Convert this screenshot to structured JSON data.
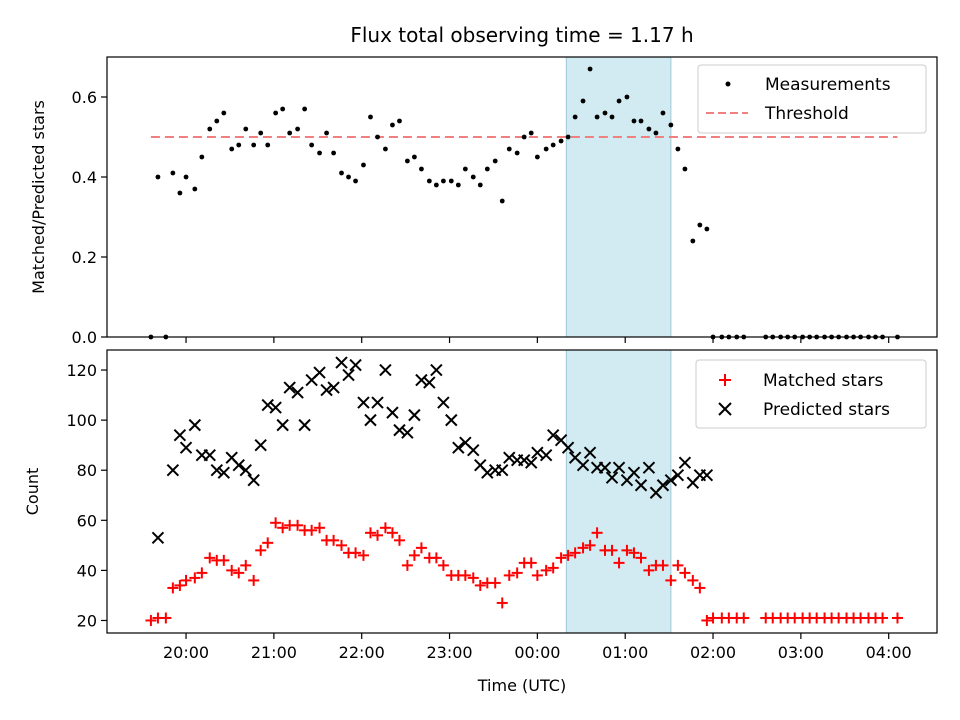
{
  "title": "Flux total observing time = 1.17 h",
  "colors": {
    "measurement": "#000000",
    "threshold": "#f08080",
    "matched": "#ff0000",
    "predicted": "#000000",
    "shade": "#add8e6"
  },
  "chart_data": [
    {
      "type": "scatter",
      "ylabel": "Matched/Predicted stars",
      "xlim_hours": [
        19.1,
        28.55
      ],
      "ylim": [
        0,
        0.7
      ],
      "yticks": [
        "0.0",
        "0.2",
        "0.4",
        "0.6"
      ],
      "legend_placement": "top-right",
      "shaded_interval_hours": [
        24.33,
        25.52
      ],
      "series": [
        {
          "name": "Measurements",
          "x": [
            19.6,
            19.68,
            19.77,
            19.85,
            19.93,
            20.0,
            20.1,
            20.18,
            20.27,
            20.35,
            20.43,
            20.52,
            20.6,
            20.68,
            20.77,
            20.85,
            20.93,
            21.02,
            21.1,
            21.18,
            21.27,
            21.35,
            21.43,
            21.52,
            21.6,
            21.68,
            21.77,
            21.85,
            21.93,
            22.02,
            22.1,
            22.18,
            22.27,
            22.35,
            22.43,
            22.52,
            22.6,
            22.68,
            22.77,
            22.85,
            22.93,
            23.02,
            23.1,
            23.18,
            23.27,
            23.35,
            23.43,
            23.52,
            23.6,
            23.68,
            23.77,
            23.85,
            23.93,
            24.0,
            24.1,
            24.18,
            24.27,
            24.35,
            24.43,
            24.52,
            24.6,
            24.68,
            24.77,
            24.85,
            24.93,
            25.02,
            25.1,
            25.18,
            25.27,
            25.35,
            25.43,
            25.52,
            25.6,
            25.68,
            25.77,
            25.85,
            25.93,
            26.0,
            26.1,
            26.18,
            26.27,
            26.35,
            26.6,
            26.68,
            26.77,
            26.85,
            26.93,
            27.02,
            27.1,
            27.18,
            27.27,
            27.35,
            27.43,
            27.52,
            27.6,
            27.68,
            27.77,
            27.85,
            27.93,
            28.1
          ],
          "y": [
            0.0,
            0.4,
            0.0,
            0.41,
            0.36,
            0.4,
            0.37,
            0.45,
            0.52,
            0.54,
            0.56,
            0.47,
            0.48,
            0.52,
            0.48,
            0.51,
            0.48,
            0.56,
            0.57,
            0.51,
            0.52,
            0.57,
            0.48,
            0.46,
            0.51,
            0.46,
            0.41,
            0.4,
            0.39,
            0.43,
            0.55,
            0.5,
            0.47,
            0.53,
            0.54,
            0.44,
            0.45,
            0.42,
            0.39,
            0.38,
            0.39,
            0.39,
            0.38,
            0.42,
            0.4,
            0.38,
            0.42,
            0.44,
            0.34,
            0.47,
            0.46,
            0.5,
            0.51,
            0.45,
            0.47,
            0.48,
            0.49,
            0.5,
            0.55,
            0.59,
            0.67,
            0.55,
            0.56,
            0.55,
            0.59,
            0.6,
            0.54,
            0.54,
            0.52,
            0.51,
            0.56,
            0.53,
            0.47,
            0.42,
            0.24,
            0.28,
            0.27,
            0.0,
            0.0,
            0.0,
            0.0,
            0.0,
            0.0,
            0.0,
            0.0,
            0.0,
            0.0,
            0.0,
            0.0,
            0.0,
            0.0,
            0.0,
            0.0,
            0.0,
            0.0,
            0.0,
            0.0,
            0.0,
            0.0,
            0.0
          ]
        },
        {
          "name": "Threshold",
          "x": [
            19.6,
            28.1
          ],
          "y": [
            0.5,
            0.5
          ]
        }
      ]
    },
    {
      "type": "scatter",
      "ylabel": "Count",
      "xlabel": "Time (UTC)",
      "xlim_hours": [
        19.1,
        28.55
      ],
      "ylim": [
        15,
        128
      ],
      "yticks": [
        "20",
        "40",
        "60",
        "80",
        "100",
        "120"
      ],
      "xticks": [
        {
          "hour": 20,
          "label": "20:00"
        },
        {
          "hour": 21,
          "label": "21:00"
        },
        {
          "hour": 22,
          "label": "22:00"
        },
        {
          "hour": 23,
          "label": "23:00"
        },
        {
          "hour": 24,
          "label": "00:00"
        },
        {
          "hour": 25,
          "label": "01:00"
        },
        {
          "hour": 26,
          "label": "02:00"
        },
        {
          "hour": 27,
          "label": "03:00"
        },
        {
          "hour": 28,
          "label": "04:00"
        }
      ],
      "legend_placement": "top-right",
      "shaded_interval_hours": [
        24.33,
        25.52
      ],
      "series": [
        {
          "name": "Matched stars",
          "x": [
            19.6,
            19.68,
            19.77,
            19.85,
            19.93,
            20.0,
            20.1,
            20.18,
            20.27,
            20.35,
            20.43,
            20.52,
            20.6,
            20.68,
            20.77,
            20.85,
            20.93,
            21.02,
            21.1,
            21.18,
            21.27,
            21.35,
            21.43,
            21.52,
            21.6,
            21.68,
            21.77,
            21.85,
            21.93,
            22.02,
            22.1,
            22.18,
            22.27,
            22.35,
            22.43,
            22.52,
            22.6,
            22.68,
            22.77,
            22.85,
            22.93,
            23.02,
            23.1,
            23.18,
            23.27,
            23.35,
            23.43,
            23.52,
            23.6,
            23.68,
            23.77,
            23.85,
            23.93,
            24.0,
            24.1,
            24.18,
            24.27,
            24.35,
            24.43,
            24.52,
            24.6,
            24.68,
            24.77,
            24.85,
            24.93,
            25.02,
            25.1,
            25.18,
            25.27,
            25.35,
            25.43,
            25.52,
            25.6,
            25.68,
            25.77,
            25.85,
            25.93,
            26.0,
            26.1,
            26.18,
            26.27,
            26.35,
            26.6,
            26.68,
            26.77,
            26.85,
            26.93,
            27.02,
            27.1,
            27.18,
            27.27,
            27.35,
            27.43,
            27.52,
            27.6,
            27.68,
            27.77,
            27.85,
            27.93,
            28.1
          ],
          "y": [
            20,
            21,
            21,
            33,
            34,
            36,
            37,
            39,
            45,
            44,
            44,
            40,
            39,
            42,
            36,
            48,
            51,
            59,
            57,
            58,
            58,
            56,
            56,
            57,
            52,
            52,
            50,
            47,
            47,
            46,
            55,
            54,
            57,
            55,
            52,
            42,
            46,
            49,
            45,
            45,
            42,
            38,
            38,
            38,
            37,
            34,
            35,
            35,
            27,
            38,
            39,
            43,
            43,
            38,
            40,
            41,
            45,
            46,
            47,
            49,
            50,
            55,
            48,
            48,
            43,
            48,
            47,
            45,
            40,
            42,
            42,
            36,
            42,
            39,
            36,
            33,
            20,
            21,
            21,
            21,
            21,
            21,
            21,
            21,
            21,
            21,
            21,
            21,
            21,
            21,
            21,
            21,
            21,
            21,
            21,
            21,
            21,
            21,
            21,
            21
          ]
        },
        {
          "name": "Predicted stars",
          "x": [
            19.68,
            19.85,
            19.93,
            20.0,
            20.1,
            20.18,
            20.27,
            20.35,
            20.43,
            20.52,
            20.6,
            20.68,
            20.77,
            20.85,
            20.93,
            21.02,
            21.1,
            21.18,
            21.27,
            21.35,
            21.43,
            21.52,
            21.6,
            21.68,
            21.77,
            21.85,
            21.93,
            22.02,
            22.1,
            22.18,
            22.27,
            22.35,
            22.43,
            22.52,
            22.6,
            22.68,
            22.77,
            22.85,
            22.93,
            23.02,
            23.1,
            23.18,
            23.27,
            23.35,
            23.43,
            23.52,
            23.6,
            23.68,
            23.77,
            23.85,
            23.93,
            24.0,
            24.1,
            24.18,
            24.27,
            24.35,
            24.43,
            24.52,
            24.6,
            24.68,
            24.77,
            24.85,
            24.93,
            25.02,
            25.1,
            25.18,
            25.27,
            25.35,
            25.43,
            25.52,
            25.6,
            25.68,
            25.77,
            25.85,
            25.93
          ],
          "y": [
            53,
            80,
            94,
            89,
            98,
            86,
            86,
            80,
            79,
            85,
            82,
            80,
            76,
            90,
            106,
            105,
            98,
            113,
            111,
            98,
            116,
            119,
            112,
            113,
            123,
            118,
            122,
            107,
            100,
            107,
            120,
            103,
            96,
            95,
            102,
            116,
            115,
            120,
            107,
            100,
            89,
            91,
            88,
            82,
            79,
            80,
            80,
            85,
            84,
            84,
            83,
            87,
            86,
            94,
            92,
            89,
            85,
            82,
            87,
            81,
            81,
            77,
            81,
            76,
            79,
            74,
            81,
            71,
            74,
            76,
            78,
            83,
            75,
            78,
            78
          ]
        }
      ]
    }
  ]
}
